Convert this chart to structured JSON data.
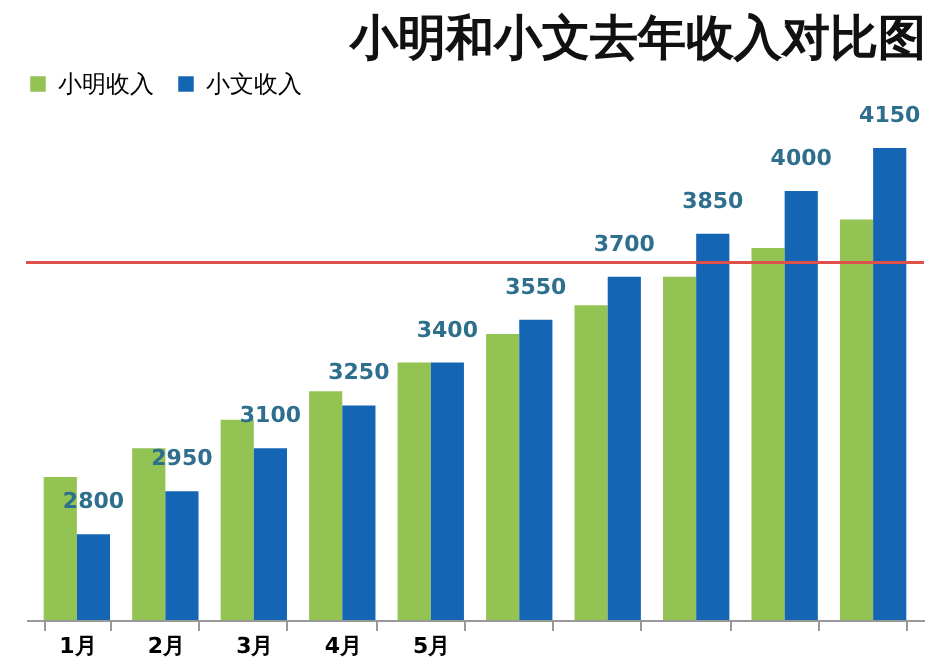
{
  "chart_data": {
    "type": "bar",
    "title": "小明和小文去年收入对比图",
    "categories": [
      "1月",
      "2月",
      "3月",
      "4月",
      "5月",
      null,
      null,
      null,
      null,
      null
    ],
    "series": [
      {
        "name": "小明收入",
        "color": "#92c353",
        "values": [
          3000,
          3100,
          3200,
          3300,
          3400,
          3500,
          3600,
          3700,
          3800,
          3900
        ]
      },
      {
        "name": "小文收入",
        "color": "#1565b5",
        "values": [
          2800,
          2950,
          3100,
          3250,
          3400,
          3550,
          3700,
          3850,
          4000,
          4150
        ],
        "value_labels": [
          "2800",
          "2950",
          "3100",
          "3250",
          "3400",
          "3550",
          "3700",
          "3850",
          "4000",
          "4150"
        ]
      }
    ],
    "ylim": [
      2500,
      4150
    ],
    "ref_lines": [
      {
        "axis": "y",
        "value": 3750,
        "color": "#e0504a"
      }
    ],
    "legend": "top"
  }
}
